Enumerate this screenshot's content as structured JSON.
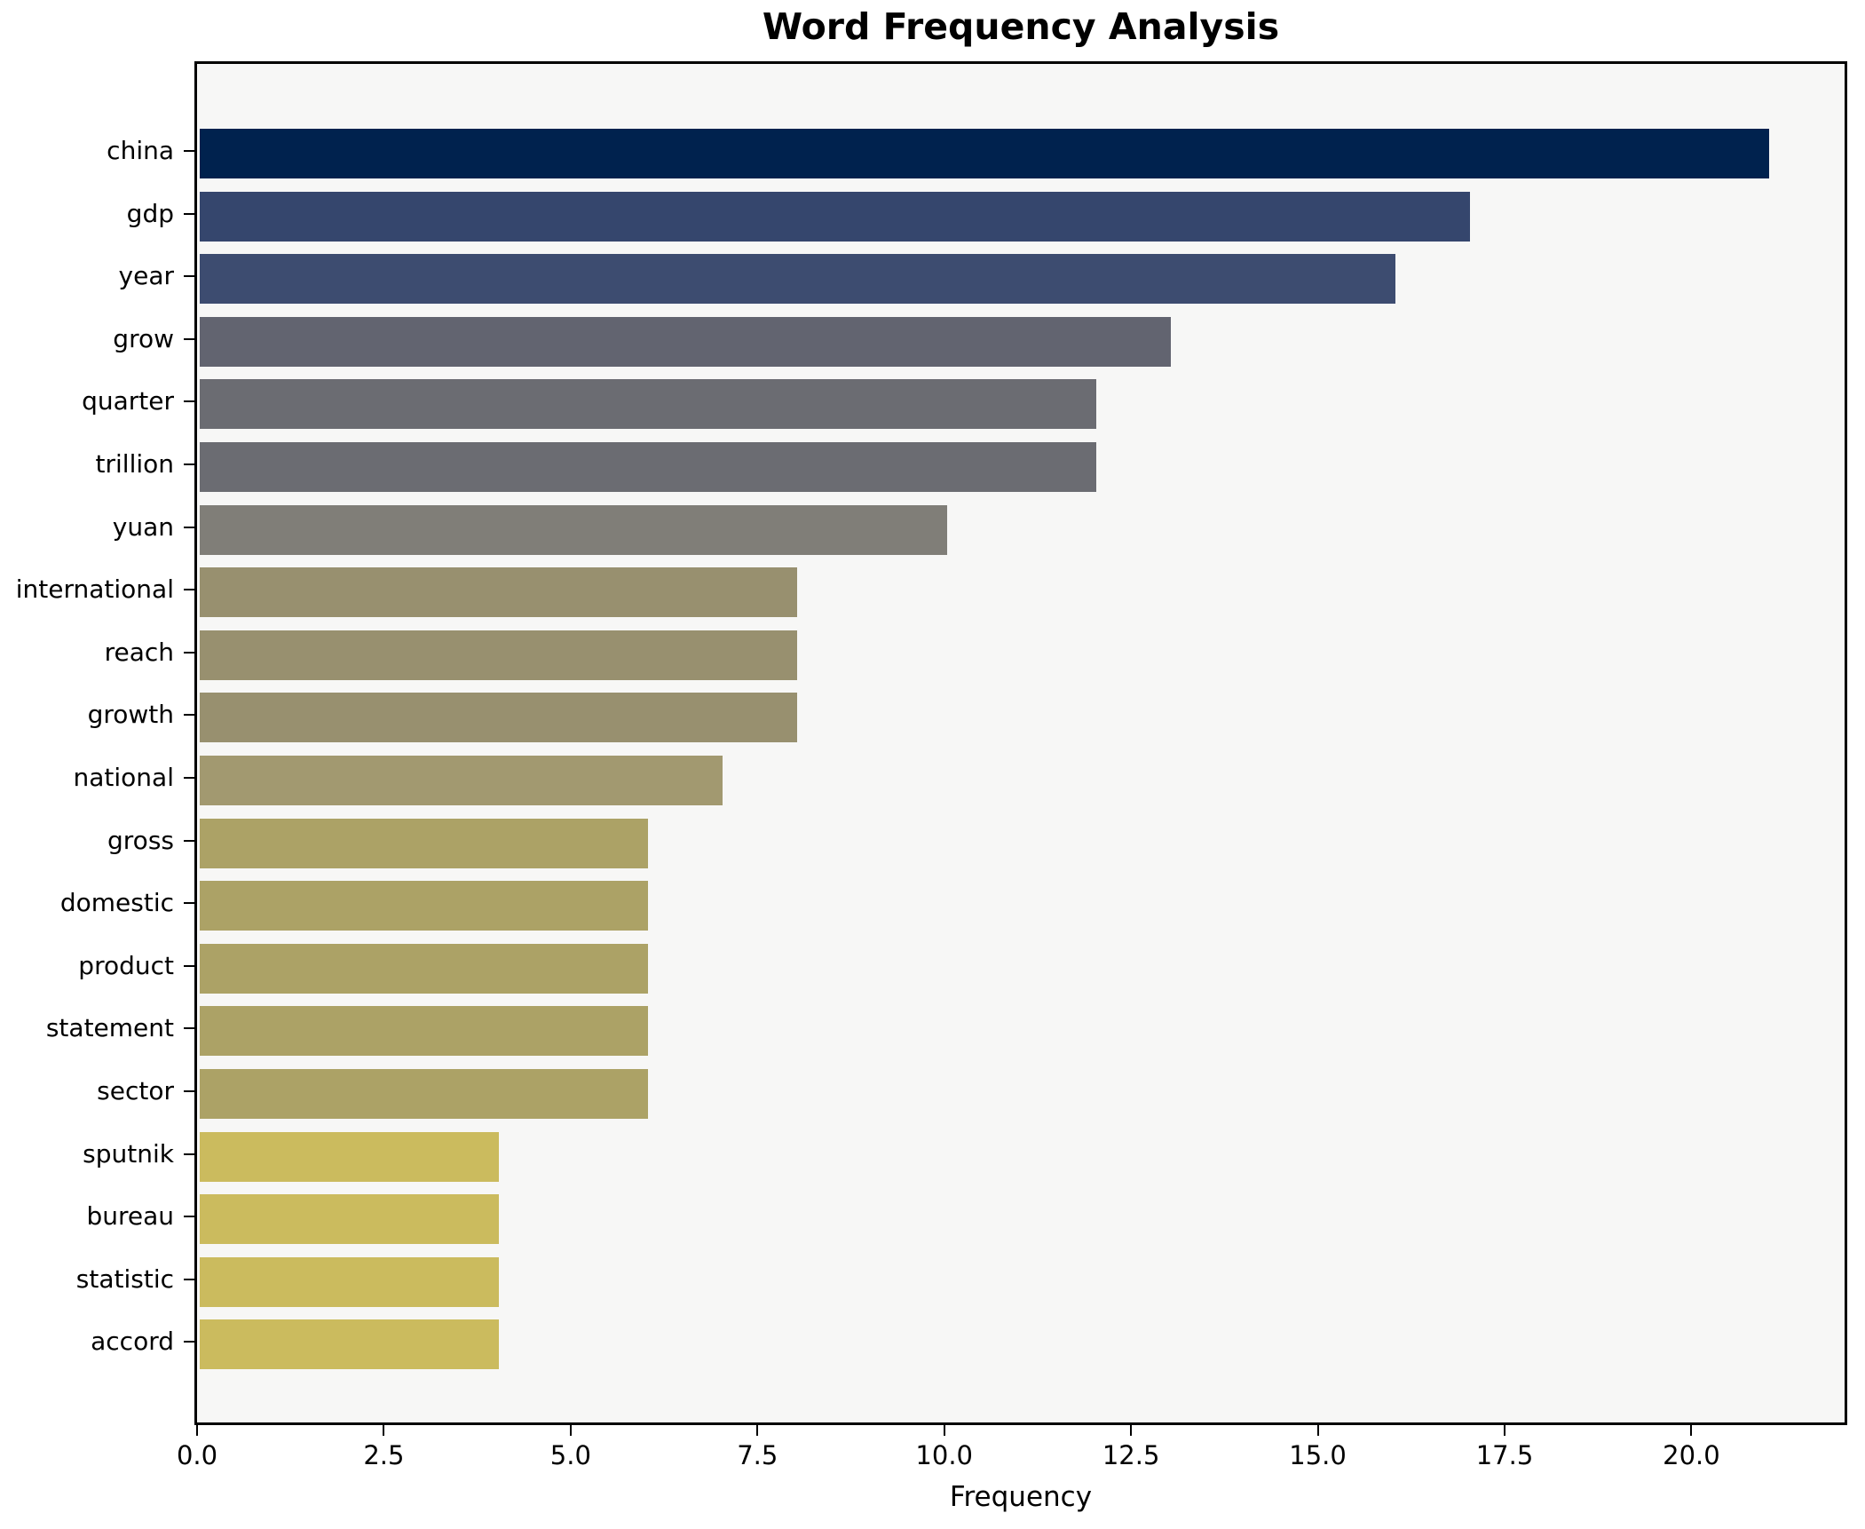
{
  "chart_data": {
    "type": "bar",
    "orientation": "horizontal",
    "title": "Word Frequency Analysis",
    "xlabel": "Frequency",
    "ylabel": "",
    "categories": [
      "china",
      "gdp",
      "year",
      "grow",
      "quarter",
      "trillion",
      "yuan",
      "international",
      "reach",
      "growth",
      "national",
      "gross",
      "domestic",
      "product",
      "statement",
      "sector",
      "sputnik",
      "bureau",
      "statistic",
      "accord"
    ],
    "values": [
      21,
      17,
      16,
      13,
      12,
      12,
      10,
      8,
      8,
      8,
      7,
      6,
      6,
      6,
      6,
      6,
      4,
      4,
      4,
      4
    ],
    "bar_colors": [
      "#00224e",
      "#35466d",
      "#3d4c70",
      "#626470",
      "#6b6c72",
      "#6b6c72",
      "#807e78",
      "#98906f",
      "#98906f",
      "#98906f",
      "#a29970",
      "#aca266",
      "#aca266",
      "#aca266",
      "#aca266",
      "#aca266",
      "#cbbb5e",
      "#cbbb5e",
      "#cbbb5e",
      "#cbbb5e"
    ],
    "xlim": [
      0,
      22.05
    ],
    "xticks": [
      0.0,
      2.5,
      5.0,
      7.5,
      10.0,
      12.5,
      15.0,
      17.5,
      20.0
    ],
    "xtick_labels": [
      "0.0",
      "2.5",
      "5.0",
      "7.5",
      "10.0",
      "12.5",
      "15.0",
      "17.5",
      "20.0"
    ],
    "grid": false,
    "legend": "none",
    "plot_background": "#f7f7f6",
    "figure_background": "#ffffff",
    "spine_color": "#000000"
  }
}
